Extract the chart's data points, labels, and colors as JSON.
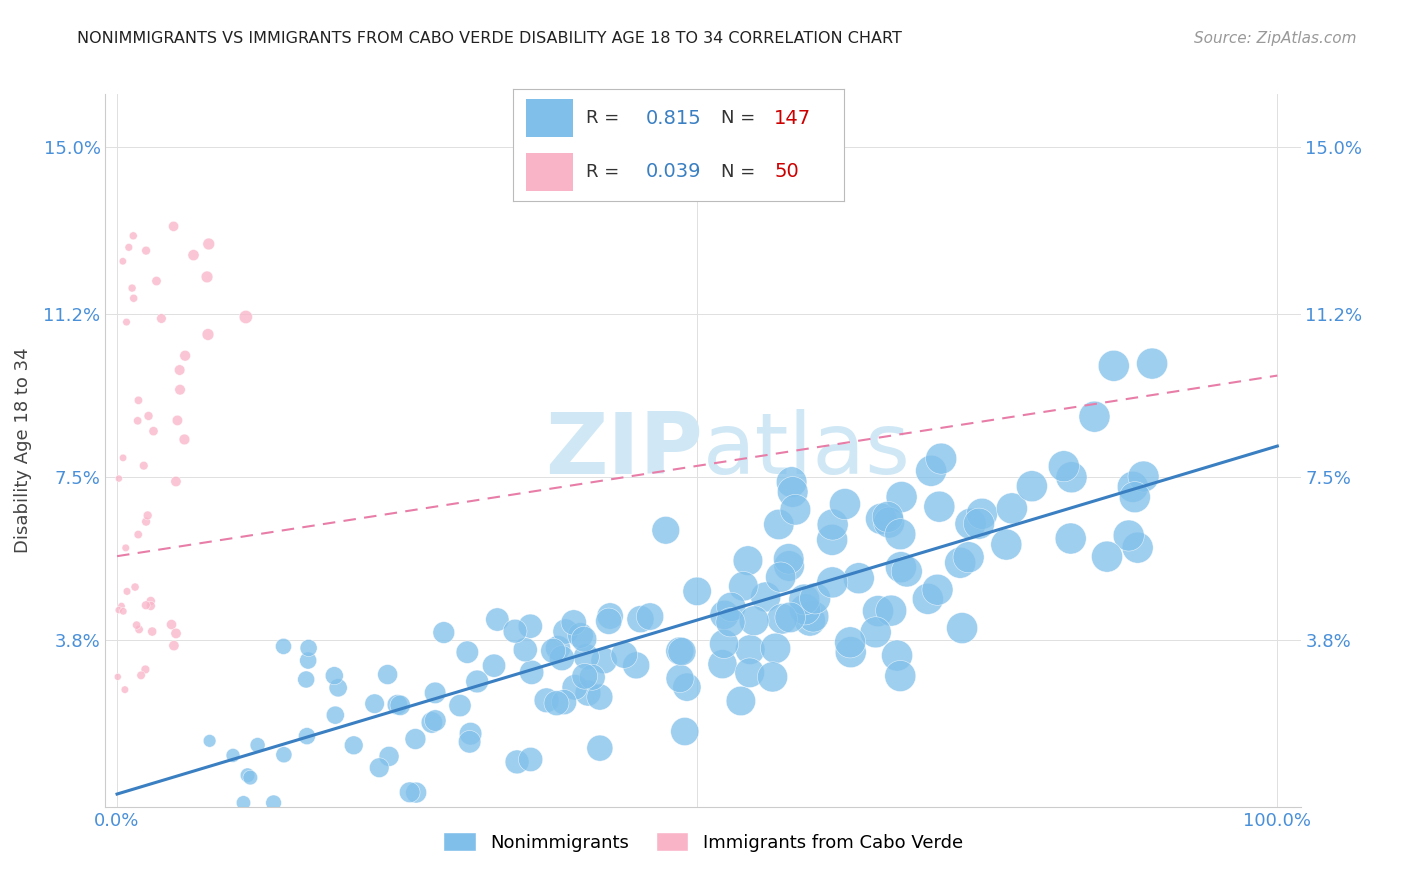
{
  "title": "NONIMMIGRANTS VS IMMIGRANTS FROM CABO VERDE DISABILITY AGE 18 TO 34 CORRELATION CHART",
  "source": "Source: ZipAtlas.com",
  "ylabel": "Disability Age 18 to 34",
  "y_ticks": [
    0.038,
    0.075,
    0.112,
    0.15
  ],
  "y_tick_labels": [
    "3.8%",
    "7.5%",
    "11.2%",
    "15.0%"
  ],
  "ylim": [
    0.0,
    0.162
  ],
  "xlim": [
    -0.01,
    1.02
  ],
  "blue_R": 0.815,
  "blue_N": 147,
  "pink_R": 0.039,
  "pink_N": 50,
  "blue_color": "#7fbfea",
  "pink_color": "#f9b4c8",
  "blue_line_color": "#3a7fc1",
  "pink_line_color": "#e87da8",
  "watermark_color": "#d0e8f5",
  "blue_line_y_start": 0.003,
  "blue_line_y_end": 0.082,
  "pink_line_y_start": 0.057,
  "pink_line_y_end": 0.098,
  "background_color": "#ffffff",
  "grid_color": "#e0e0e0",
  "title_color": "#222222",
  "source_color": "#999999",
  "axis_label_color": "#444444",
  "tick_color": "#4a90d9",
  "legend_R_color": "#3a7fc1",
  "legend_N_color": "#cc0000"
}
